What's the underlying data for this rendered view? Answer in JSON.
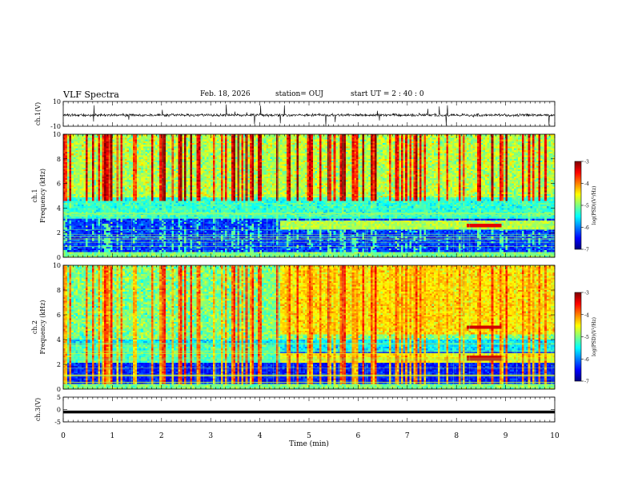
{
  "header": {
    "title": "VLF Spectra",
    "date": "Feb. 18, 2026",
    "station": "station= OUJ",
    "start": "start  UT =  2 : 40 : 0"
  },
  "colors": {
    "colormap": [
      "#00007f",
      "#0000ff",
      "#007fff",
      "#00ffff",
      "#7fff7f",
      "#ffff00",
      "#ff7f00",
      "#ff0000",
      "#7f0000"
    ]
  },
  "chart_data": [
    {
      "type": "line",
      "panel": "ch1-waveform",
      "ylabel": "ch.1(V)",
      "ylim": [
        -10,
        10
      ],
      "yticks": [
        "10",
        "-10"
      ],
      "xlim": [
        0,
        10
      ],
      "description_level": -1
    },
    {
      "type": "heatmap",
      "panel": "ch1-spectrogram",
      "ylabel": "ch.1\nFrequency (kHz)",
      "ylim": [
        0,
        10
      ],
      "yticks": [
        "0",
        "2",
        "4",
        "6",
        "8",
        "10"
      ],
      "xlim": [
        0,
        10
      ],
      "colorbar": {
        "label": "log(PSD)(V²/Hz)",
        "range": [
          -7,
          -3
        ],
        "ticks": [
          "-3",
          "-4",
          "-5",
          "-6",
          "-7"
        ]
      },
      "features": {
        "bg_cutoff_khz": 4.8,
        "step_time_min": 4.4,
        "band_khz": 2.6,
        "red_band_start_min": 8.2,
        "red_band_end_min": 8.9
      }
    },
    {
      "type": "heatmap",
      "panel": "ch2-spectrogram",
      "ylabel": "ch.2\nFrequency (kHz)",
      "ylim": [
        0,
        10
      ],
      "yticks": [
        "0",
        "2",
        "4",
        "6",
        "8",
        "10"
      ],
      "xlim": [
        0,
        10
      ],
      "colorbar": {
        "label": "log(PSD)(V²/Hz)",
        "range": [
          -7,
          -3
        ],
        "ticks": [
          "-3",
          "-4",
          "-5",
          "-6",
          "-7"
        ]
      },
      "features": {
        "step_time_min": 4.4,
        "band_khz": 2.5,
        "band2_khz": 5.0,
        "red_band_start_min": 8.2,
        "red_band_end_min": 8.9
      }
    },
    {
      "type": "line",
      "panel": "ch3-waveform",
      "ylabel": "ch.3(V)",
      "ylim": [
        -5,
        5
      ],
      "yticks": [
        "5",
        "0",
        "-5"
      ],
      "xlim": [
        0,
        10
      ],
      "level": -1
    }
  ],
  "xaxis": {
    "label": "Time (min)",
    "ticks": [
      "0",
      "1",
      "2",
      "3",
      "4",
      "5",
      "6",
      "7",
      "8",
      "9",
      "10"
    ],
    "range": [
      0,
      10
    ]
  }
}
